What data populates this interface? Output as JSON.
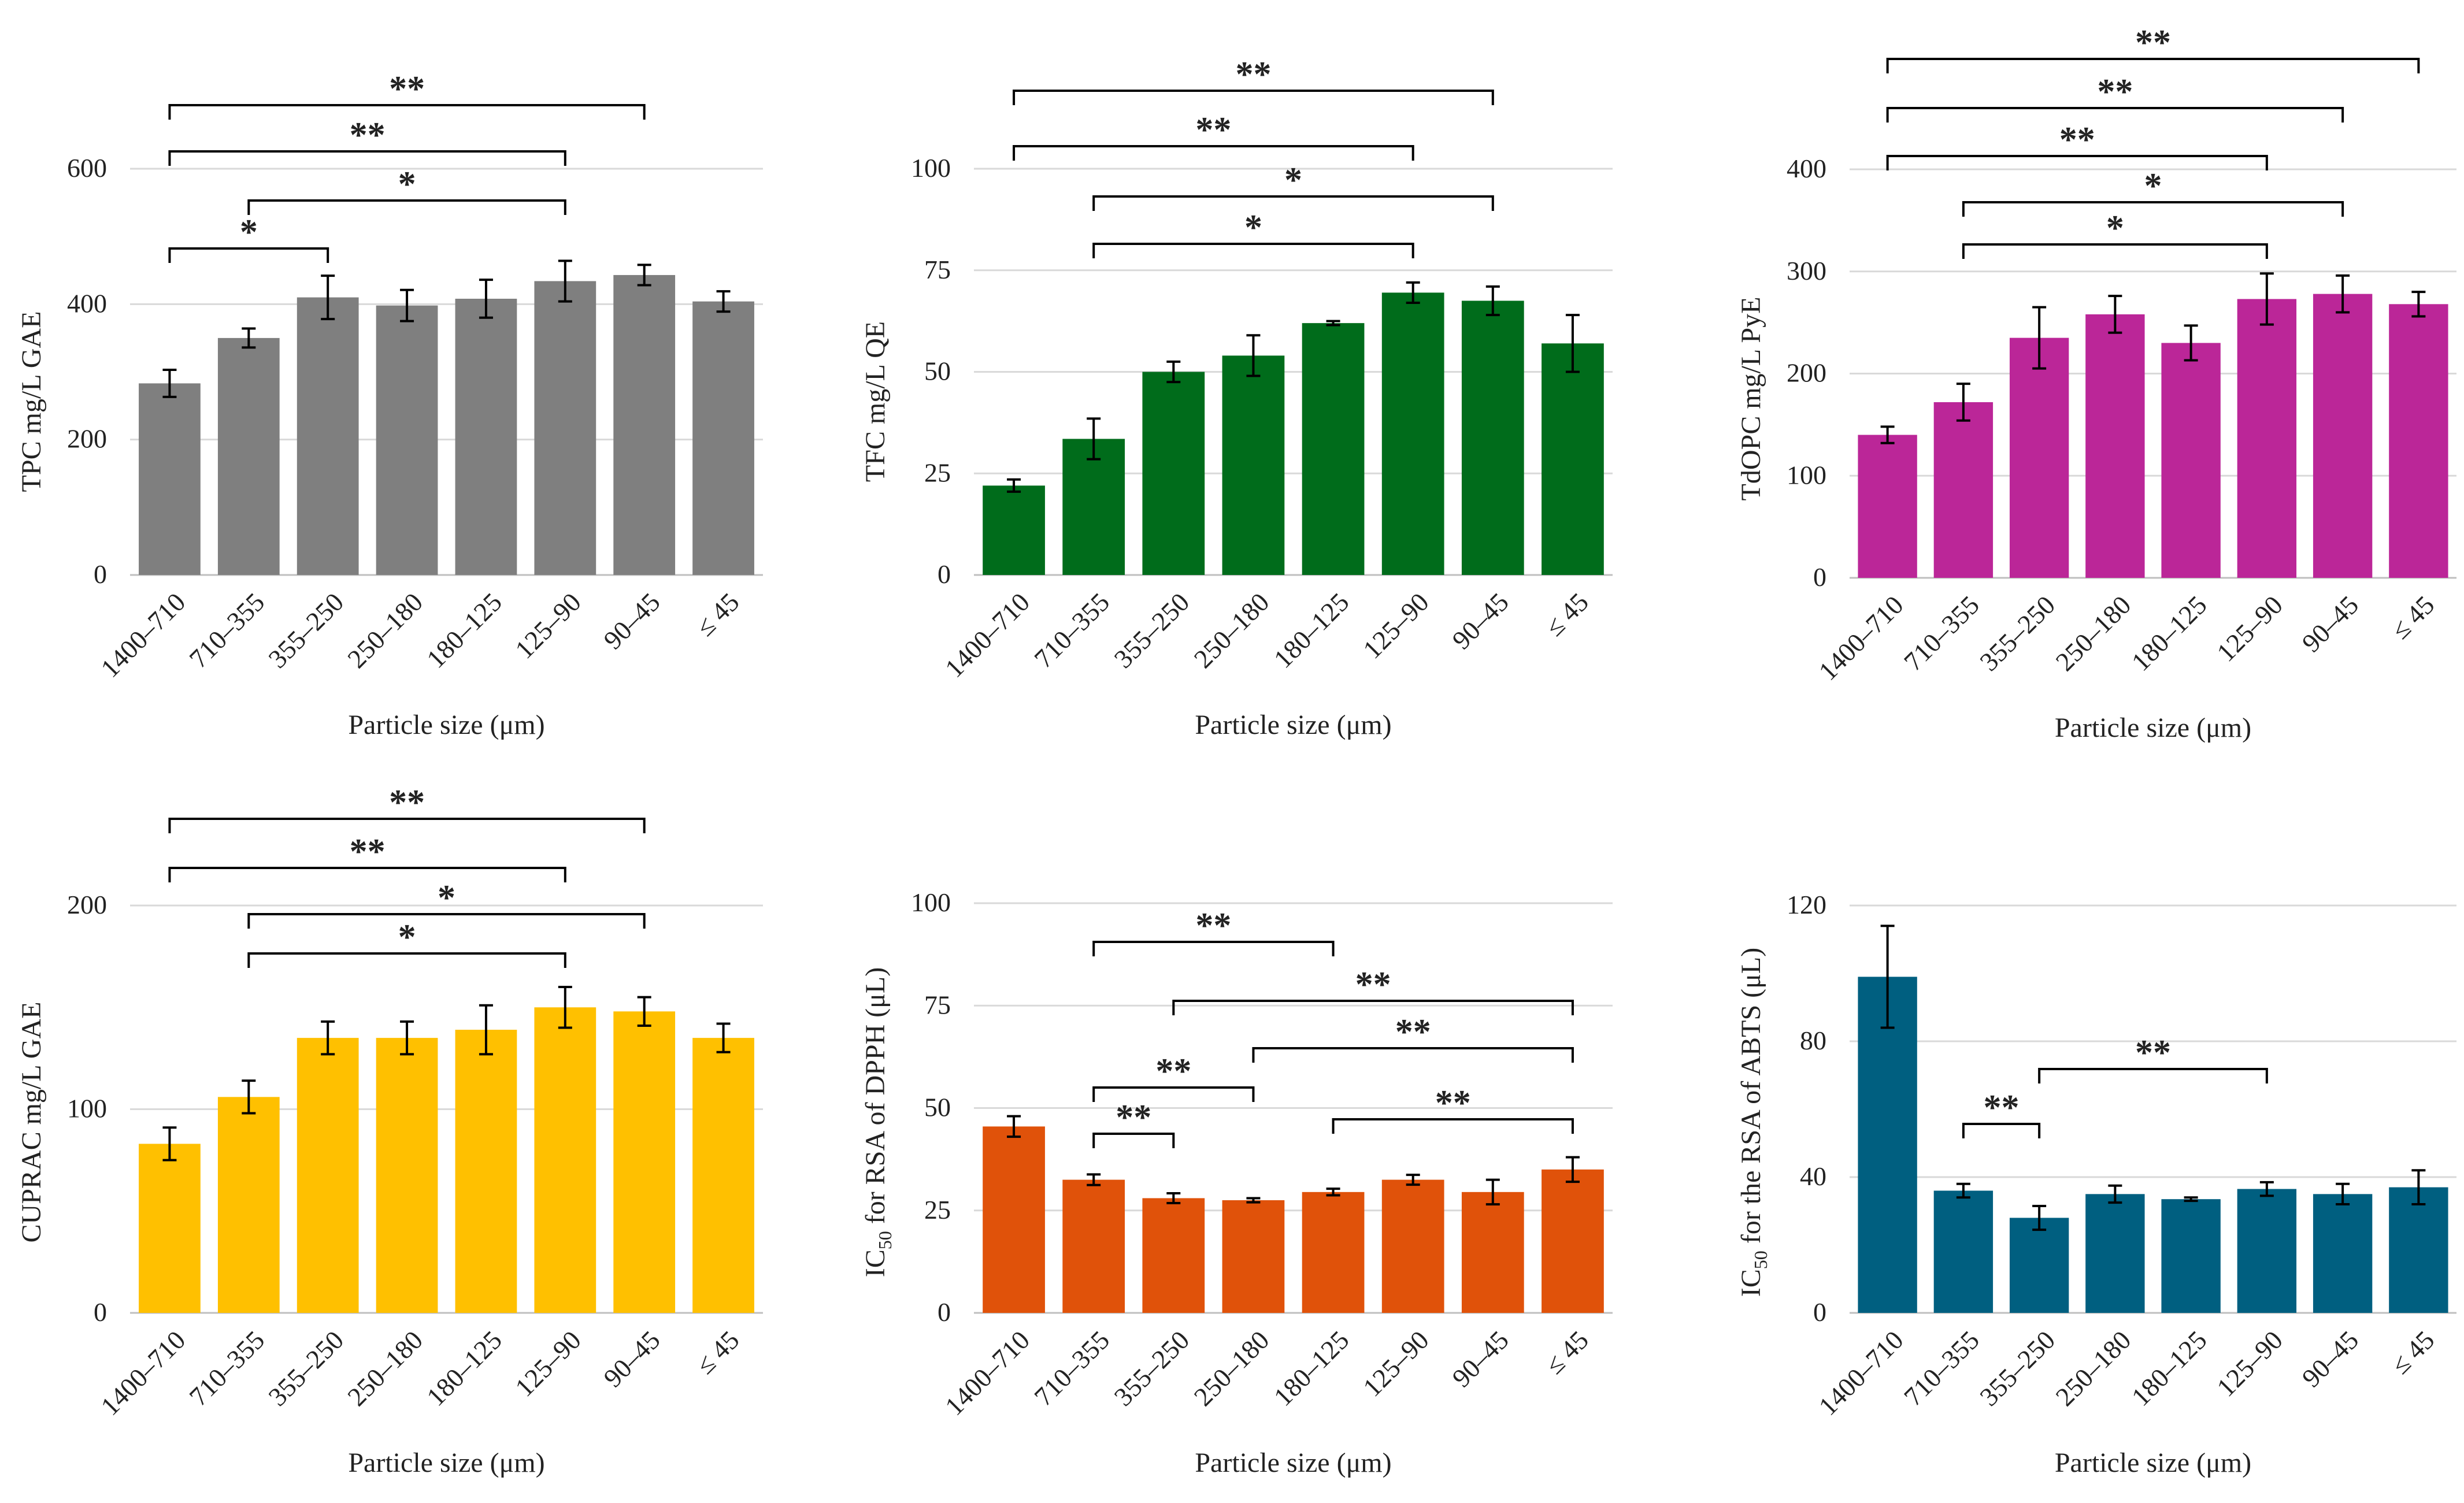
{
  "chart_data": [
    {
      "type": "bar",
      "color": "#7f7f7f",
      "categories": [
        "1400–710",
        "710–355",
        "355–250",
        "250–180",
        "180–125",
        "125–90",
        "90–45",
        "≤ 45"
      ],
      "values": [
        283,
        350,
        410,
        398,
        408,
        434,
        443,
        404
      ],
      "errors": [
        20,
        14,
        32,
        23,
        28,
        30,
        15,
        15
      ],
      "ylabel": "TPC mg/L GAE",
      "xlabel": "Particle size (μm)",
      "ylim": [
        0,
        650
      ],
      "yticks": [
        0,
        200,
        400,
        600
      ],
      "grid": true,
      "significance": [
        {
          "from": 0,
          "to": 6,
          "label": "**"
        },
        {
          "from": 0,
          "to": 5,
          "label": "**"
        },
        {
          "from": 1,
          "to": 5,
          "label": "*"
        },
        {
          "from": 0,
          "to": 2,
          "label": "*"
        }
      ]
    },
    {
      "type": "bar",
      "color": "#006c1b",
      "categories": [
        "1400–710",
        "710–355",
        "355–250",
        "250–180",
        "180–125",
        "125–90",
        "90–45",
        "≤ 45"
      ],
      "values": [
        22,
        33.5,
        50,
        54,
        62,
        69.5,
        67.5,
        57
      ],
      "errors": [
        1.5,
        5,
        2.5,
        5,
        0.5,
        2.5,
        3.5,
        7
      ],
      "ylabel": "TFC mg/L QE",
      "xlabel": "Particle size (μm)",
      "ylim": [
        0,
        110
      ],
      "yticks": [
        0,
        25,
        50,
        75,
        100
      ],
      "grid": true,
      "significance": [
        {
          "from": 0,
          "to": 6,
          "label": "**"
        },
        {
          "from": 0,
          "to": 5,
          "label": "**"
        },
        {
          "from": 1,
          "to": 6,
          "label": "*"
        },
        {
          "from": 1,
          "to": 5,
          "label": "*"
        }
      ]
    },
    {
      "type": "bar",
      "color": "#bb2698",
      "categories": [
        "1400–710",
        "710–355",
        "355–250",
        "250–180",
        "180–125",
        "125–90",
        "90–45",
        "≤ 45"
      ],
      "values": [
        140,
        172,
        235,
        258,
        230,
        273,
        278,
        268
      ],
      "errors": [
        8,
        18,
        30,
        18,
        17,
        25,
        18,
        12
      ],
      "ylabel": "TdOPC mg/L PyE",
      "xlabel": "Particle size (μm)",
      "ylim": [
        0,
        440
      ],
      "yticks": [
        0,
        100,
        200,
        300,
        400
      ],
      "grid": true,
      "significance": [
        {
          "from": 0,
          "to": 7,
          "label": "**"
        },
        {
          "from": 0,
          "to": 6,
          "label": "**"
        },
        {
          "from": 0,
          "to": 5,
          "label": "**"
        },
        {
          "from": 1,
          "to": 6,
          "label": "*"
        },
        {
          "from": 1,
          "to": 5,
          "label": "*"
        }
      ]
    },
    {
      "type": "bar",
      "color": "#ffc000",
      "categories": [
        "1400–710",
        "710–355",
        "355–250",
        "250–180",
        "180–125",
        "125–90",
        "90–45",
        "≤ 45"
      ],
      "values": [
        83,
        106,
        135,
        135,
        139,
        150,
        148,
        135
      ],
      "errors": [
        8,
        8,
        8,
        8,
        12,
        10,
        7,
        7
      ],
      "ylabel": "CUPRAC mg/L GAE",
      "xlabel": "Particle size (μm)",
      "ylim": [
        0,
        240
      ],
      "yticks": [
        0,
        100,
        200
      ],
      "grid": true,
      "significance": [
        {
          "from": 0,
          "to": 6,
          "label": "**"
        },
        {
          "from": 0,
          "to": 5,
          "label": "**"
        },
        {
          "from": 1,
          "to": 6,
          "label": "*"
        },
        {
          "from": 1,
          "to": 5,
          "label": "*"
        }
      ]
    },
    {
      "type": "bar",
      "color": "#e0520a",
      "categories": [
        "1400–710",
        "710–355",
        "355–250",
        "250–180",
        "180–125",
        "125–90",
        "90–45",
        "≤ 45"
      ],
      "values": [
        45.5,
        32.5,
        28,
        27.5,
        29.5,
        32.5,
        29.5,
        35
      ],
      "errors": [
        2.5,
        1.3,
        1.2,
        0.5,
        0.8,
        1.2,
        3,
        3
      ],
      "ylabel_main": "IC",
      "ylabel_sub": "50",
      "ylabel_rest": " for RSA of DPPH (μL)",
      "xlabel": "Particle size (μm)",
      "ylim": [
        0,
        110
      ],
      "yticks": [
        0,
        25,
        50,
        75,
        100
      ],
      "grid": true,
      "significance": [
        {
          "from": 1,
          "to": 4,
          "label": "**"
        },
        {
          "from": 2,
          "to": 7,
          "label": "**"
        },
        {
          "from": 3,
          "to": 7,
          "label": "**"
        },
        {
          "from": 1,
          "to": 3,
          "label": "**"
        },
        {
          "from": 4,
          "to": 7,
          "label": "**"
        },
        {
          "from": 1,
          "to": 2,
          "label": "**"
        }
      ]
    },
    {
      "type": "bar",
      "color": "#005f80",
      "categories": [
        "1400–710",
        "710–355",
        "355–250",
        "250–180",
        "180–125",
        "125–90",
        "90–45",
        "≤ 45"
      ],
      "values": [
        99,
        36,
        28,
        35,
        33.5,
        36.5,
        35,
        37
      ],
      "errors": [
        15,
        2,
        3.5,
        2.5,
        0.5,
        2,
        3,
        5
      ],
      "ylabel_main": "IC",
      "ylabel_sub": "50",
      "ylabel_rest": " for the RSA of ABTS (μL)",
      "xlabel": "Particle size (μm)",
      "ylim": [
        0,
        130
      ],
      "yticks": [
        0,
        40,
        80,
        120
      ],
      "grid": true,
      "significance": [
        {
          "from": 2,
          "to": 5,
          "label": "**"
        },
        {
          "from": 1,
          "to": 2,
          "label": "**"
        }
      ]
    }
  ]
}
